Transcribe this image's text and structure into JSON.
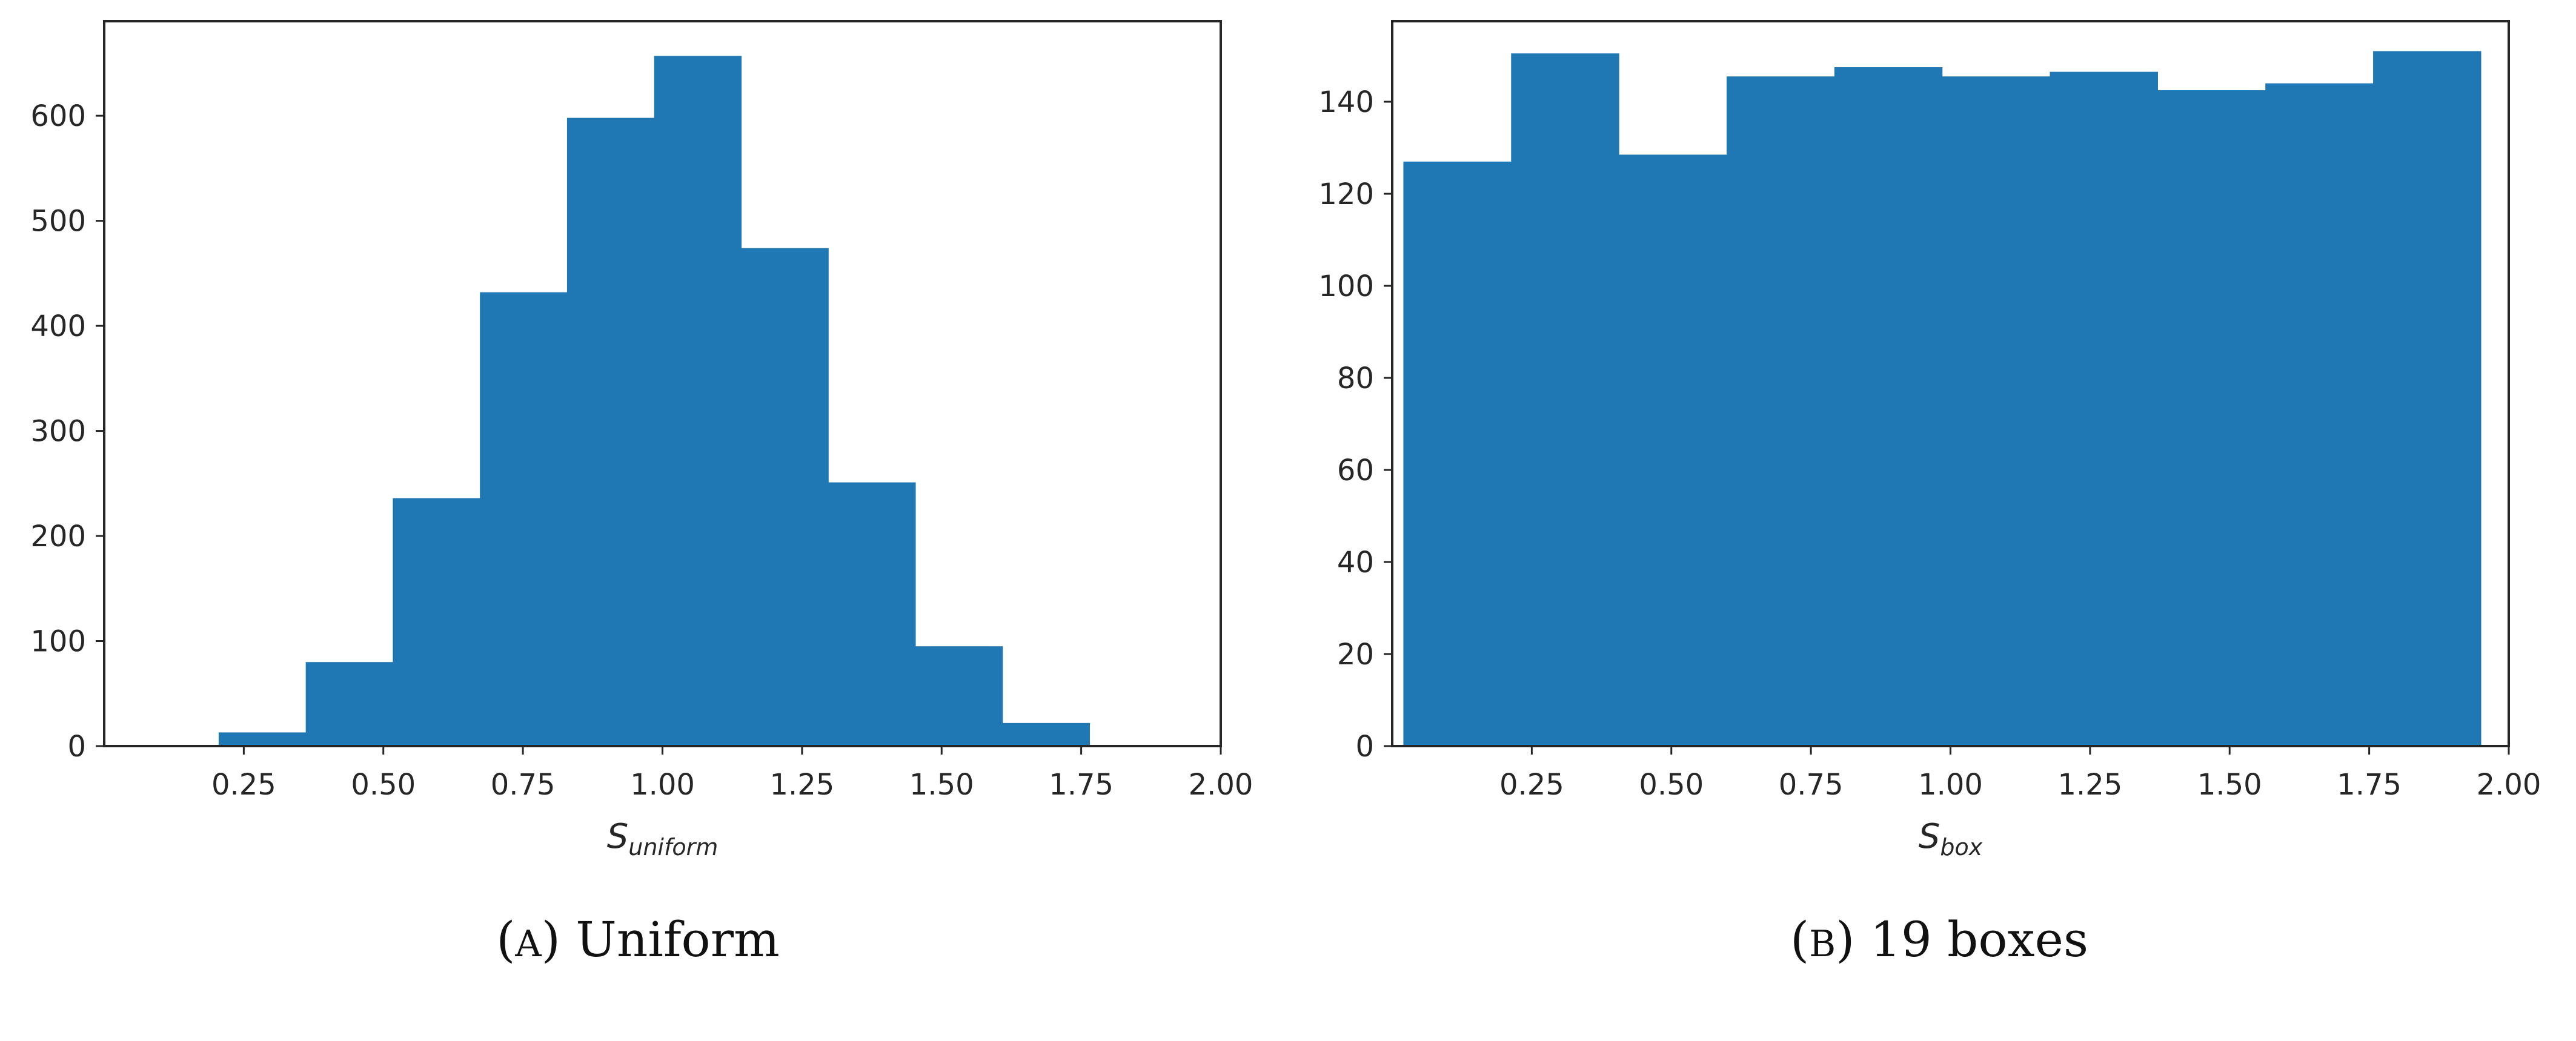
{
  "chart_data": [
    {
      "type": "bar",
      "xlabel": {
        "base": "S",
        "subscript": "uniform"
      },
      "caption": {
        "prefix": "(",
        "tag": "A",
        "suffix": ")",
        "title": "Uniform"
      },
      "xlim": [
        0.0,
        2.0
      ],
      "ylim": [
        0,
        690
      ],
      "xticks": [
        "0.25",
        "0.50",
        "0.75",
        "1.00",
        "1.25",
        "1.50",
        "1.75",
        "2.00"
      ],
      "yticks": [
        "0",
        "100",
        "200",
        "300",
        "400",
        "500",
        "600"
      ],
      "bins": [
        {
          "x0": 0.205,
          "x1": 0.361,
          "value": 13
        },
        {
          "x0": 0.361,
          "x1": 0.517,
          "value": 80
        },
        {
          "x0": 0.517,
          "x1": 0.673,
          "value": 236
        },
        {
          "x0": 0.673,
          "x1": 0.829,
          "value": 432
        },
        {
          "x0": 0.829,
          "x1": 0.985,
          "value": 598
        },
        {
          "x0": 0.985,
          "x1": 1.141,
          "value": 657
        },
        {
          "x0": 1.141,
          "x1": 1.297,
          "value": 474
        },
        {
          "x0": 1.297,
          "x1": 1.453,
          "value": 251
        },
        {
          "x0": 1.453,
          "x1": 1.609,
          "value": 95
        },
        {
          "x0": 1.609,
          "x1": 1.765,
          "value": 22
        }
      ],
      "bar_color": "#1f77b4"
    },
    {
      "type": "bar",
      "xlabel": {
        "base": "S",
        "subscript": "box"
      },
      "caption": {
        "prefix": "(",
        "tag": "B",
        "suffix": ")",
        "title": "19 boxes"
      },
      "xlim": [
        0.0,
        2.0
      ],
      "ylim": [
        0,
        157.5
      ],
      "xticks": [
        "0.25",
        "0.50",
        "0.75",
        "1.00",
        "1.25",
        "1.50",
        "1.75",
        "2.00"
      ],
      "yticks": [
        "0",
        "20",
        "40",
        "60",
        "80",
        "100",
        "120",
        "140"
      ],
      "bins": [
        {
          "x0": 0.02,
          "x1": 0.213,
          "value": 127
        },
        {
          "x0": 0.213,
          "x1": 0.406,
          "value": 150.5
        },
        {
          "x0": 0.406,
          "x1": 0.599,
          "value": 128.5
        },
        {
          "x0": 0.599,
          "x1": 0.792,
          "value": 145.5
        },
        {
          "x0": 0.792,
          "x1": 0.985,
          "value": 147.5
        },
        {
          "x0": 0.985,
          "x1": 1.178,
          "value": 145.5
        },
        {
          "x0": 1.178,
          "x1": 1.371,
          "value": 146.5
        },
        {
          "x0": 1.371,
          "x1": 1.564,
          "value": 142.5
        },
        {
          "x0": 1.564,
          "x1": 1.757,
          "value": 144
        },
        {
          "x0": 1.757,
          "x1": 1.95,
          "value": 151
        }
      ],
      "bar_color": "#1f77b4"
    }
  ]
}
